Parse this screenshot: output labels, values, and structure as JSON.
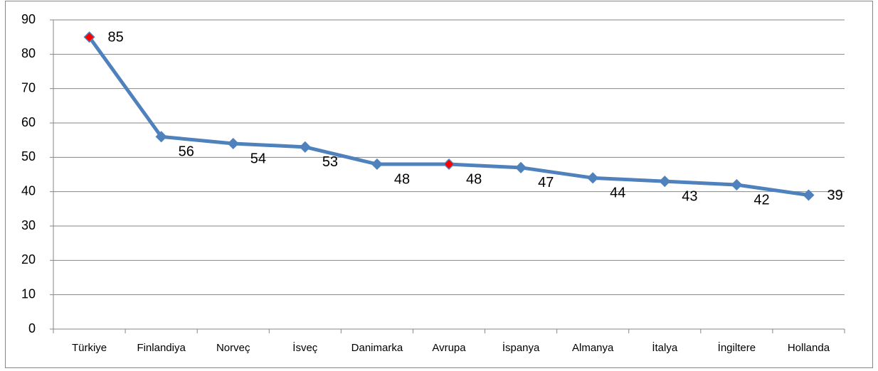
{
  "chart_data": {
    "type": "line",
    "categories": [
      "Türkiye",
      "Finlandiya",
      "Norveç",
      "İsveç",
      "Danimarka",
      "Avrupa",
      "İspanya",
      "Almanya",
      "İtalya",
      "İngiltere",
      "Hollanda"
    ],
    "series": [
      {
        "color": "#4f81bd",
        "values": [
          85,
          56,
          54,
          53,
          48,
          48,
          47,
          44,
          43,
          42,
          39
        ],
        "marker_colors": [
          "#ff0000",
          "#4f81bd",
          "#4f81bd",
          "#4f81bd",
          "#4f81bd",
          "#ff0000",
          "#4f81bd",
          "#4f81bd",
          "#4f81bd",
          "#4f81bd",
          "#4f81bd"
        ]
      }
    ],
    "ylim": [
      0,
      90
    ],
    "yticks": [
      0,
      10,
      20,
      30,
      40,
      50,
      60,
      70,
      80,
      90
    ],
    "grid": true
  }
}
